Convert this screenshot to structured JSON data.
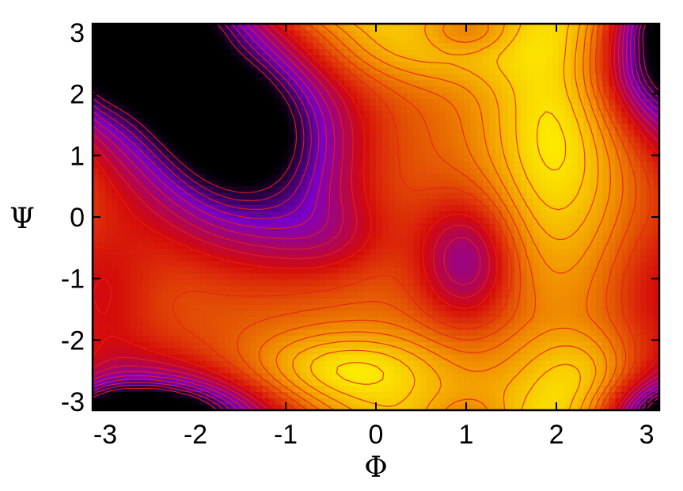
{
  "chart_data": {
    "type": "heatmap",
    "title": "",
    "xlabel": "Φ",
    "ylabel": "Ψ",
    "xlim": [
      -3.14,
      3.14
    ],
    "ylim": [
      -3.14,
      3.14
    ],
    "xticks": [
      "-3",
      "-2",
      "-1",
      "0",
      "1",
      "2",
      "3"
    ],
    "yticks": [
      "3",
      "2",
      "1",
      "0",
      "-1",
      "-2",
      "-3"
    ],
    "xtick_values": [
      -3,
      -2,
      -1,
      0,
      1,
      2,
      3
    ],
    "ytick_values": [
      3,
      2,
      1,
      0,
      -1,
      -2,
      -3
    ],
    "colormap": [
      "#000000",
      "#7a00c8",
      "#d40a0a",
      "#f08c00",
      "#ffff00"
    ],
    "contour_line_color": "#e8201a",
    "grid": false,
    "legend": "none",
    "minima": [
      {
        "phi": -2.6,
        "psi": 2.75,
        "depth": 1.0
      },
      {
        "phi": -1.4,
        "psi": 0.9,
        "depth": 1.0
      },
      {
        "phi": 1.0,
        "psi": -0.7,
        "depth": 0.75
      },
      {
        "phi": -2.6,
        "psi": -3.1,
        "depth": 0.7
      }
    ],
    "maxima": [
      {
        "phi": -0.3,
        "psi": -2.5
      },
      {
        "phi": 2.0,
        "psi": 1.5
      },
      {
        "phi": 0.5,
        "psi": 2.8
      },
      {
        "phi": 2.4,
        "psi": -2.7
      }
    ]
  }
}
